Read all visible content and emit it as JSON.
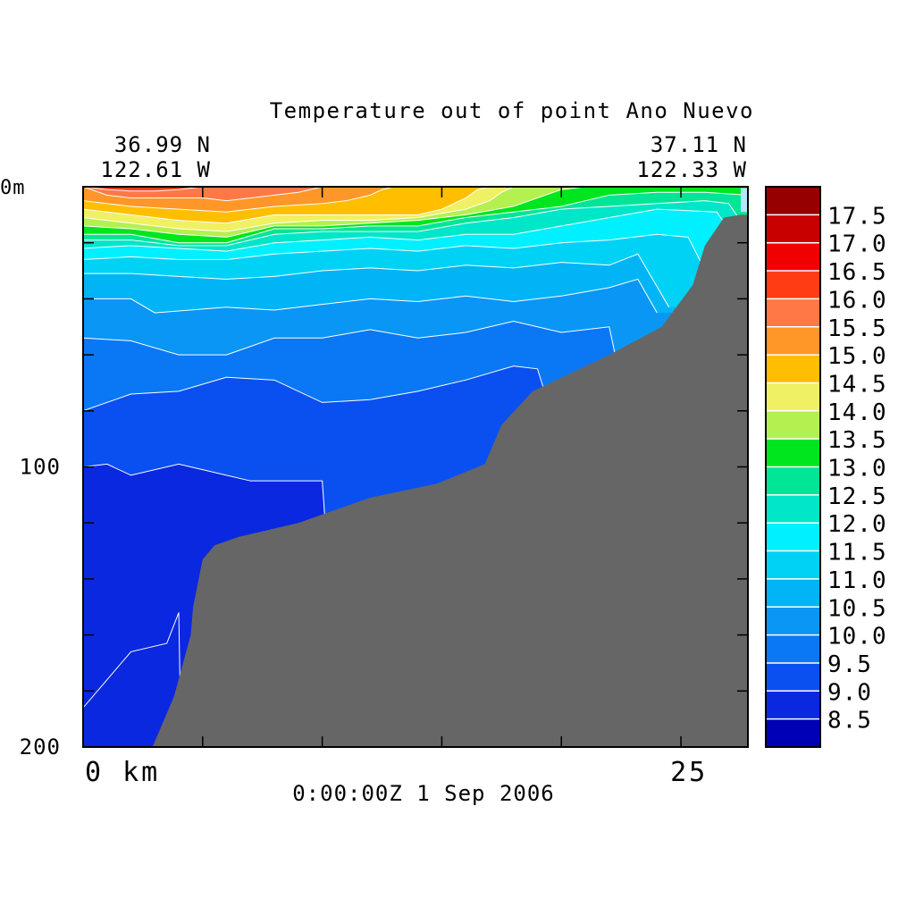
{
  "title": "Temperature out of point Ano Nuevo",
  "corner_left": {
    "lat": "36.99 N",
    "lon": "122.61 W"
  },
  "corner_right": {
    "lat": "37.11 N",
    "lon": "122.33 W"
  },
  "timestamp": "0:00:00Z   1 Sep 2006",
  "chart_data": {
    "type": "heatmap",
    "title": "Temperature out of point Ano Nuevo",
    "xlabel": "",
    "ylabel": "",
    "x_unit": "km",
    "y_unit": "m",
    "xlim": [
      0,
      27.8
    ],
    "ylim": [
      0,
      200
    ],
    "y_inverted": true,
    "x_ticks": [
      0,
      5,
      10,
      15,
      20,
      25
    ],
    "x_tick_labels": [
      {
        "value": 0,
        "label": "0 km"
      },
      {
        "value": 25,
        "label": "25"
      }
    ],
    "y_ticks": [
      0,
      20,
      40,
      60,
      80,
      100,
      120,
      140,
      160,
      180,
      200
    ],
    "y_tick_labels": [
      {
        "value": 0,
        "label": "0m"
      },
      {
        "value": 100,
        "label": "100"
      },
      {
        "value": 200,
        "label": "200"
      }
    ],
    "colorbar": {
      "levels": [
        8.5,
        9.0,
        9.5,
        10.0,
        10.5,
        11.0,
        11.5,
        12.0,
        12.5,
        13.0,
        13.5,
        14.0,
        14.5,
        15.0,
        15.5,
        16.0,
        16.5,
        17.0,
        17.5
      ],
      "labels": [
        "8.5",
        "9.0",
        "9.5",
        "10.0",
        "10.5",
        "11.0",
        "11.5",
        "12.0",
        "12.5",
        "13.0",
        "13.5",
        "14.0",
        "14.5",
        "15.0",
        "15.5",
        "16.0",
        "16.5",
        "17.0",
        "17.5"
      ],
      "colors": [
        "#0000b4",
        "#0a28e0",
        "#0a50f0",
        "#0a78f5",
        "#0a96f5",
        "#00b4f5",
        "#00d2f5",
        "#00f0ff",
        "#00e6c8",
        "#00e696",
        "#00e61e",
        "#b4f050",
        "#f0f064",
        "#ffbe00",
        "#ff9628",
        "#ff7846",
        "#ff3c14",
        "#f00000",
        "#c80000",
        "#960000"
      ]
    },
    "contour_boundaries": [
      {
        "level": 8.5,
        "points": [
          [
            0,
            186
          ],
          [
            2,
            166
          ],
          [
            3.5,
            163
          ],
          [
            4,
            152
          ],
          [
            4.1,
            200
          ]
        ]
      },
      {
        "level": 9.0,
        "points": [
          [
            0,
            100
          ],
          [
            1,
            99
          ],
          [
            2,
            103
          ],
          [
            4,
            99
          ],
          [
            5,
            101
          ],
          [
            7,
            105
          ],
          [
            10,
            105
          ],
          [
            10.1,
            117
          ]
        ]
      },
      {
        "level": 9.5,
        "points": [
          [
            0,
            80
          ],
          [
            2,
            74
          ],
          [
            4,
            73
          ],
          [
            6,
            68
          ],
          [
            8,
            69
          ],
          [
            10,
            77
          ],
          [
            12,
            76
          ],
          [
            14,
            73
          ],
          [
            16,
            69
          ],
          [
            18,
            64
          ],
          [
            19,
            65
          ],
          [
            19.4,
            76
          ]
        ]
      },
      {
        "level": 10.0,
        "points": [
          [
            0,
            54
          ],
          [
            2,
            55
          ],
          [
            4,
            60
          ],
          [
            6,
            60
          ],
          [
            8,
            54
          ],
          [
            10,
            54
          ],
          [
            12,
            51
          ],
          [
            14,
            54
          ],
          [
            16,
            52
          ],
          [
            18,
            48
          ],
          [
            20,
            52
          ],
          [
            22,
            50
          ],
          [
            22.3,
            62
          ]
        ]
      },
      {
        "level": 10.5,
        "points": [
          [
            0,
            40
          ],
          [
            2,
            40
          ],
          [
            3,
            45
          ],
          [
            6,
            43
          ],
          [
            8,
            44
          ],
          [
            10,
            42
          ],
          [
            12,
            40
          ],
          [
            14,
            41
          ],
          [
            16,
            39
          ],
          [
            18,
            41
          ],
          [
            20,
            39
          ],
          [
            22,
            36
          ],
          [
            23.2,
            33
          ],
          [
            24,
            45
          ]
        ]
      },
      {
        "level": 11.0,
        "points": [
          [
            0,
            31
          ],
          [
            2,
            31
          ],
          [
            4,
            32
          ],
          [
            6,
            33
          ],
          [
            8,
            32
          ],
          [
            10,
            30
          ],
          [
            12,
            29
          ],
          [
            14,
            30
          ],
          [
            16,
            28
          ],
          [
            18,
            29
          ],
          [
            20,
            27
          ],
          [
            22,
            28
          ],
          [
            23.2,
            24
          ],
          [
            24.5,
            43
          ]
        ]
      },
      {
        "level": 11.5,
        "points": [
          [
            0,
            26
          ],
          [
            2,
            25
          ],
          [
            4,
            26
          ],
          [
            6,
            26
          ],
          [
            8,
            24
          ],
          [
            10,
            23
          ],
          [
            12,
            22
          ],
          [
            14,
            23
          ],
          [
            16,
            21
          ],
          [
            18,
            22
          ],
          [
            20,
            20
          ],
          [
            22,
            19
          ],
          [
            24,
            17
          ],
          [
            25.3,
            18
          ],
          [
            25.9,
            28
          ]
        ]
      },
      {
        "level": 12.0,
        "points": [
          [
            0,
            22
          ],
          [
            2,
            21
          ],
          [
            4,
            22
          ],
          [
            6,
            23
          ],
          [
            8,
            20
          ],
          [
            10,
            19
          ],
          [
            12,
            18
          ],
          [
            14,
            19
          ],
          [
            16,
            17
          ],
          [
            18,
            17
          ],
          [
            20,
            14
          ],
          [
            22,
            11
          ],
          [
            24,
            8
          ],
          [
            26.5,
            9
          ],
          [
            26.9,
            14
          ]
        ]
      },
      {
        "level": 12.5,
        "points": [
          [
            0,
            19
          ],
          [
            2,
            19
          ],
          [
            4,
            21
          ],
          [
            6,
            21
          ],
          [
            8,
            17
          ],
          [
            10,
            16
          ],
          [
            12,
            16
          ],
          [
            14,
            16
          ],
          [
            16,
            13
          ],
          [
            18,
            11
          ],
          [
            20,
            8
          ],
          [
            22,
            7
          ],
          [
            24,
            6
          ],
          [
            26,
            5
          ],
          [
            27,
            6
          ],
          [
            27.4,
            11
          ]
        ]
      },
      {
        "level": 13.0,
        "points": [
          [
            0,
            17
          ],
          [
            2,
            17
          ],
          [
            4,
            20
          ],
          [
            6,
            20
          ],
          [
            8,
            15
          ],
          [
            10,
            15
          ],
          [
            12,
            14
          ],
          [
            14,
            14
          ],
          [
            16,
            11
          ],
          [
            18,
            9
          ],
          [
            20,
            7
          ],
          [
            21,
            5
          ],
          [
            22,
            3
          ],
          [
            24,
            2
          ],
          [
            26,
            2
          ],
          [
            27.8,
            3
          ]
        ]
      },
      {
        "level": 13.5,
        "points": [
          [
            0,
            14
          ],
          [
            2,
            15
          ],
          [
            4,
            17
          ],
          [
            6,
            18
          ],
          [
            8,
            14
          ],
          [
            10,
            14
          ],
          [
            12,
            13
          ],
          [
            14,
            12
          ],
          [
            16,
            10
          ],
          [
            18,
            7
          ],
          [
            19,
            4
          ],
          [
            20,
            1
          ],
          [
            21,
            0
          ]
        ]
      },
      {
        "level": 14.0,
        "points": [
          [
            0,
            11
          ],
          [
            2,
            13
          ],
          [
            4,
            15
          ],
          [
            6,
            16
          ],
          [
            8,
            13
          ],
          [
            10,
            12
          ],
          [
            12,
            12
          ],
          [
            14,
            11
          ],
          [
            16,
            8
          ],
          [
            17,
            5
          ],
          [
            17.5,
            2
          ],
          [
            18,
            0
          ]
        ]
      },
      {
        "level": 14.5,
        "points": [
          [
            0,
            8
          ],
          [
            2,
            10
          ],
          [
            4,
            12
          ],
          [
            6,
            13
          ],
          [
            8,
            10
          ],
          [
            10,
            10
          ],
          [
            12,
            10
          ],
          [
            14,
            10
          ],
          [
            15,
            8
          ],
          [
            16,
            4
          ],
          [
            16.5,
            1
          ],
          [
            17,
            0
          ]
        ]
      },
      {
        "level": 15.0,
        "points": [
          [
            0,
            5
          ],
          [
            2,
            7
          ],
          [
            4,
            8
          ],
          [
            6,
            9
          ],
          [
            8,
            7
          ],
          [
            10,
            6
          ],
          [
            11,
            5
          ],
          [
            12,
            3
          ],
          [
            12.5,
            1
          ],
          [
            13,
            0
          ]
        ]
      },
      {
        "level": 15.5,
        "points": [
          [
            0,
            0
          ],
          [
            1,
            3
          ],
          [
            2,
            4
          ],
          [
            3,
            4
          ],
          [
            4,
            4
          ],
          [
            5,
            4
          ],
          [
            6,
            5
          ],
          [
            7,
            4
          ],
          [
            8,
            3
          ],
          [
            9,
            2
          ],
          [
            10,
            0
          ]
        ]
      },
      {
        "level": 16.0,
        "points": [
          [
            0,
            0
          ],
          [
            1,
            1
          ],
          [
            2,
            1.5
          ],
          [
            3,
            1.5
          ],
          [
            4,
            1
          ],
          [
            5,
            0
          ]
        ]
      }
    ],
    "bathymetry": [
      [
        27.8,
        10
      ],
      [
        27.5,
        10
      ],
      [
        26.8,
        11
      ],
      [
        26,
        21
      ],
      [
        25.5,
        35
      ],
      [
        24.2,
        50
      ],
      [
        22,
        60
      ],
      [
        18.8,
        73
      ],
      [
        17.5,
        85
      ],
      [
        16.8,
        99
      ],
      [
        14.8,
        106
      ],
      [
        12,
        111
      ],
      [
        9,
        120
      ],
      [
        6.5,
        125
      ],
      [
        5.5,
        128
      ],
      [
        5,
        133
      ],
      [
        4.6,
        150
      ],
      [
        4.5,
        160
      ],
      [
        3.8,
        182
      ],
      [
        2.9,
        200
      ],
      [
        27.8,
        200
      ]
    ]
  }
}
